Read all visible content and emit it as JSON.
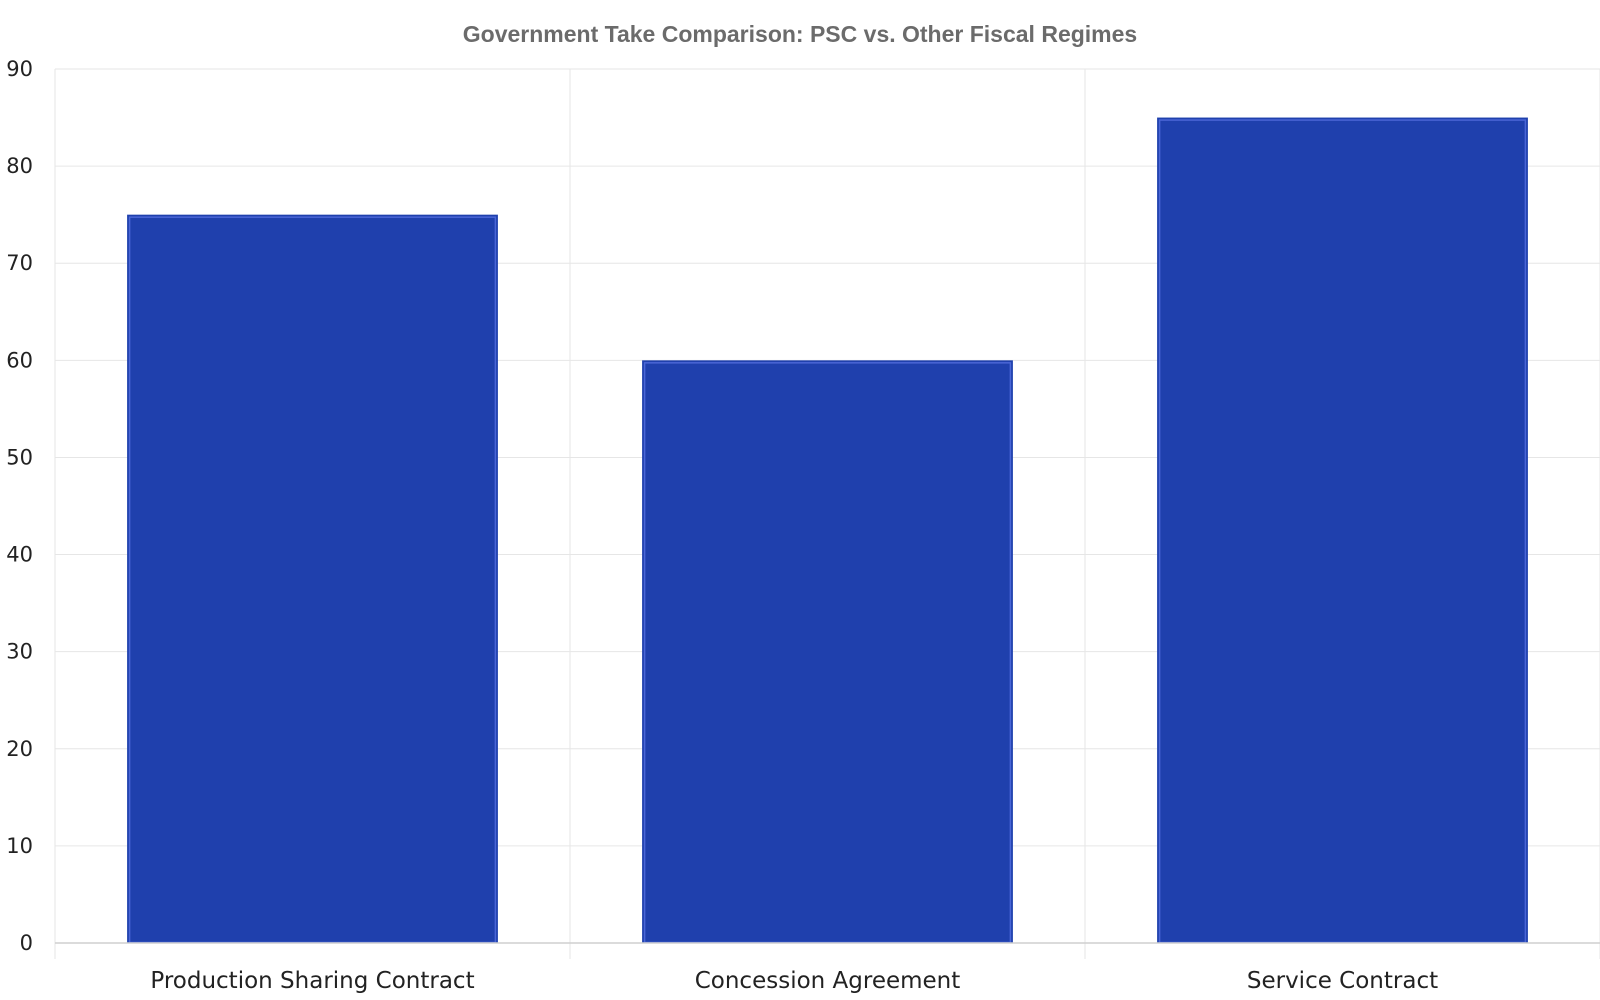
{
  "chart_data": {
    "type": "bar",
    "title": "Government Take Comparison: PSC vs. Other Fiscal Regimes",
    "xlabel": "",
    "ylabel": "",
    "categories": [
      "Production Sharing Contract",
      "Concession Agreement",
      "Service Contract"
    ],
    "values": [
      75,
      60,
      85
    ],
    "ylim": [
      0,
      90
    ],
    "yticks": [
      0,
      10,
      20,
      30,
      40,
      50,
      60,
      70,
      80,
      90
    ],
    "grid": true,
    "legend": "none",
    "colors": {
      "bar_fill": "#1f40ad",
      "bar_edge": "#4a66d6"
    }
  }
}
